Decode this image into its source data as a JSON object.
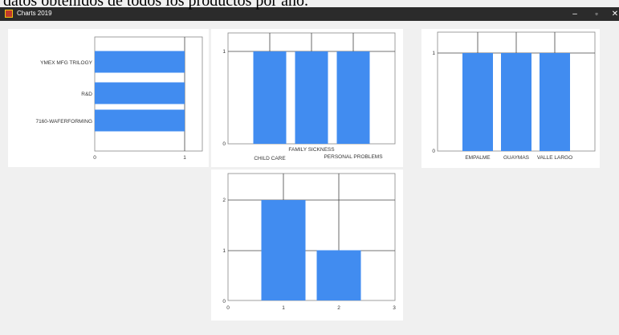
{
  "page_caption": "datos obtenidos de todos los productos por año.",
  "window": {
    "title": "Charts 2019",
    "controls": {
      "minimize": "–",
      "maximize": "▫",
      "close": "✕"
    }
  },
  "chart_data": [
    {
      "type": "bar",
      "orientation": "horizontal",
      "categories": [
        "YMEX MFG TRILOGY",
        "R&D",
        "7160-WAFERFORMING"
      ],
      "values": [
        1,
        1,
        1
      ],
      "xlim": [
        0,
        1
      ],
      "x_ticks": [
        "0",
        "1"
      ],
      "bar_color": "#418cf0",
      "grid": true
    },
    {
      "type": "bar",
      "categories": [
        "CHILD CARE",
        "FAMILY SICKNESS",
        "PERSONAL PROBLEMS"
      ],
      "values": [
        1,
        1,
        1
      ],
      "ylim": [
        0,
        1
      ],
      "y_ticks": [
        "0",
        "1"
      ],
      "bar_color": "#418cf0",
      "grid": true
    },
    {
      "type": "bar",
      "categories": [
        "EMPALME",
        "GUAYMAS",
        "VALLE LARGO"
      ],
      "values": [
        1,
        1,
        1
      ],
      "ylim": [
        0,
        1
      ],
      "y_ticks": [
        "0",
        "1"
      ],
      "bar_color": "#418cf0",
      "grid": true
    },
    {
      "type": "bar",
      "x": [
        1,
        2
      ],
      "values": [
        2,
        1
      ],
      "xlim": [
        0,
        3
      ],
      "ylim": [
        0,
        2
      ],
      "x_ticks": [
        "0",
        "1",
        "2",
        "3"
      ],
      "y_ticks": [
        "0",
        "1",
        "2"
      ],
      "bar_color": "#418cf0",
      "grid": true
    }
  ]
}
